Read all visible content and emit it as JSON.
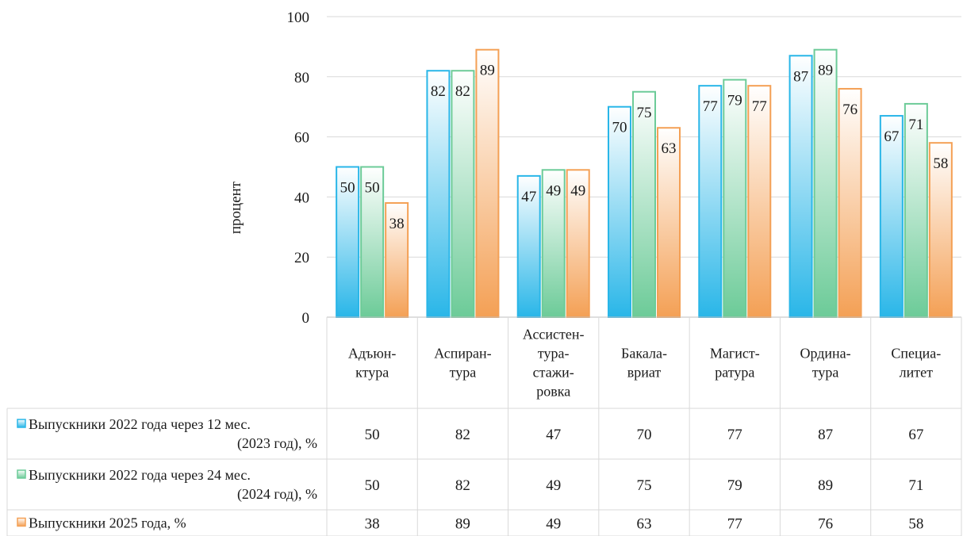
{
  "chart_data": {
    "type": "bar",
    "ylabel": "процент",
    "ylim": [
      0,
      100
    ],
    "yticks": [
      0,
      20,
      40,
      60,
      80,
      100
    ],
    "grid": true,
    "legend": "data-table-below",
    "categories": [
      [
        "Адъюн-",
        "ктура"
      ],
      [
        "Аспиран-",
        "тура"
      ],
      [
        "Ассистен-",
        "тура-",
        "стажи-",
        "ровка"
      ],
      [
        "Бакала-",
        "вриат"
      ],
      [
        "Магист-",
        "ратура"
      ],
      [
        "Ордина-",
        "тура"
      ],
      [
        "Специа-",
        "литет"
      ]
    ],
    "series": [
      {
        "name": [
          "Выпускники 2022 года через 12 мес.",
          "(2023 год), %"
        ],
        "values": [
          50,
          82,
          47,
          70,
          77,
          87,
          67
        ],
        "color": "#29b6e8",
        "fill_top": "#ffffff"
      },
      {
        "name": [
          "Выпускники 2022 года через 24 мес.",
          "(2024 год), %"
        ],
        "values": [
          50,
          82,
          49,
          75,
          79,
          89,
          71
        ],
        "color": "#6ccb98",
        "fill_top": "#ffffff"
      },
      {
        "name": [
          "Выпускники 2025 года, %"
        ],
        "values": [
          38,
          89,
          49,
          63,
          77,
          76,
          58
        ],
        "color": "#f4a055",
        "fill_top": "#ffffff"
      }
    ]
  }
}
